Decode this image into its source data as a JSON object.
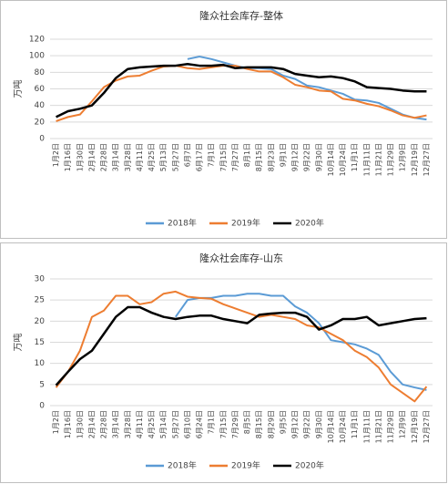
{
  "chart_data": [
    {
      "type": "line",
      "title": "隆众社会库存-整体",
      "y_label": "万吨",
      "categories": [
        "1月2日",
        "1月16日",
        "1月30日",
        "2月14日",
        "2月28日",
        "3月14日",
        "3月28日",
        "4月11日",
        "4月25日",
        "5月13日",
        "5月27日",
        "6月7日",
        "6月17日",
        "7月1日",
        "7月15日",
        "7月27日",
        "8月1日",
        "8月15日",
        "8月23日",
        "9月1日",
        "9月12日",
        "9月22日",
        "9月30日",
        "10月14日",
        "10月24日",
        "11月1日",
        "11月11日",
        "11月21日",
        "11月29日",
        "12月9日",
        "12月19日",
        "12月27日"
      ],
      "series": [
        {
          "name": "2018年",
          "color": "#5b9bd5",
          "values": [
            null,
            null,
            null,
            null,
            null,
            null,
            null,
            null,
            null,
            null,
            null,
            96,
            99,
            96,
            92,
            88,
            85,
            85,
            84,
            76,
            72,
            64,
            62,
            58,
            54,
            47,
            46,
            43,
            36,
            29,
            25,
            23
          ]
        },
        {
          "name": "2019年",
          "color": "#ed7d31",
          "values": [
            21,
            26,
            29,
            45,
            62,
            70,
            75,
            76,
            82,
            87,
            88,
            85,
            84,
            86,
            88,
            88,
            84,
            81,
            81,
            74,
            65,
            62,
            58,
            57,
            48,
            46,
            42,
            39,
            34,
            28,
            25,
            28
          ]
        },
        {
          "name": "2020年",
          "color": "#000000",
          "values": [
            26,
            33,
            36,
            40,
            55,
            73,
            84,
            86,
            87,
            88,
            88,
            90,
            88,
            88,
            89,
            85,
            86,
            86,
            86,
            84,
            78,
            76,
            74,
            75,
            73,
            69,
            62,
            61,
            60,
            58,
            57,
            57
          ]
        }
      ],
      "ylim": [
        0,
        120
      ],
      "yticks": [
        0,
        20,
        40,
        60,
        80,
        100,
        120
      ],
      "grid": true,
      "legend": "bottom"
    },
    {
      "type": "line",
      "title": "隆众社会库存-山东",
      "y_label": "万吨",
      "categories": [
        "1月2日",
        "1月16日",
        "1月30日",
        "2月14日",
        "2月28日",
        "3月14日",
        "3月28日",
        "4月11日",
        "4月25日",
        "5月14日",
        "5月27日",
        "6月10日",
        "6月24日",
        "7月1日",
        "7月15日",
        "7月29日",
        "8月5日",
        "8月15日",
        "8月29日",
        "9月5日",
        "9月12日",
        "9月22日",
        "9月30日",
        "10月14日",
        "10月24日",
        "11月1日",
        "11月11日",
        "11月21日",
        "11月29日",
        "12月9日",
        "12月19日",
        "12月27日"
      ],
      "series": [
        {
          "name": "2018年",
          "color": "#5b9bd5",
          "values": [
            null,
            null,
            null,
            null,
            null,
            null,
            null,
            null,
            null,
            null,
            21,
            25,
            25.5,
            25.5,
            26,
            26,
            26.5,
            26.5,
            26,
            26,
            23.5,
            22,
            19.5,
            15.5,
            15,
            14.5,
            13.5,
            12,
            8,
            5,
            4.3,
            3.7
          ]
        },
        {
          "name": "2019年",
          "color": "#ed7d31",
          "values": [
            4.3,
            8,
            13,
            21,
            22.5,
            26,
            26,
            24,
            24.5,
            26.5,
            27,
            25.8,
            25.5,
            25.3,
            24,
            23,
            22,
            21,
            21.5,
            21,
            20.5,
            19,
            18.5,
            17,
            15.5,
            13,
            11.5,
            9,
            5,
            3,
            1,
            4.5
          ]
        },
        {
          "name": "2020年",
          "color": "#000000",
          "values": [
            4.8,
            8,
            11,
            13,
            17,
            21,
            23.3,
            23.3,
            22,
            21,
            20.5,
            21,
            21.3,
            21.3,
            20.5,
            20,
            19.5,
            21.5,
            21.8,
            22,
            22,
            21,
            18,
            19,
            20.5,
            20.5,
            21,
            19,
            19.5,
            20,
            20.5,
            20.7
          ]
        }
      ],
      "ylim": [
        0,
        30
      ],
      "yticks": [
        0,
        5,
        10,
        15,
        20,
        25,
        30
      ],
      "grid": true,
      "legend": "bottom"
    }
  ]
}
